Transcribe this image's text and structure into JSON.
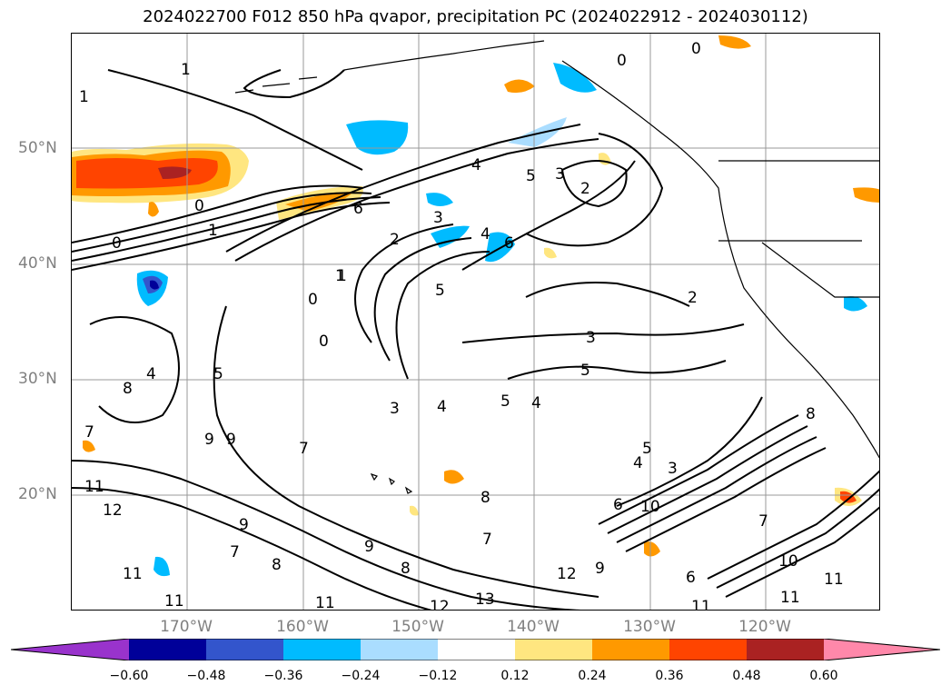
{
  "title": "2024022700 F012 850 hPa qvapor, precipitation PC (2024022912 - 2024030112)",
  "lat_labels": [
    "50°N",
    "40°N",
    "30°N",
    "20°N"
  ],
  "lon_labels": [
    "170°W",
    "160°W",
    "150°W",
    "140°W",
    "130°W",
    "120°W"
  ],
  "colorbar": {
    "ticks": [
      "−0.60",
      "−0.48",
      "−0.36",
      "−0.24",
      "−0.12",
      "0.12",
      "0.24",
      "0.36",
      "0.48",
      "0.60"
    ],
    "colors": [
      "#9933cc",
      "#000099",
      "#3355cc",
      "#00bbff",
      "#aaddff",
      "#ffffff",
      "#ffe680",
      "#ff9900",
      "#ff4400",
      "#aa2222",
      "#ff88aa"
    ]
  },
  "contour_labels": [
    "1",
    "1",
    "0",
    "0",
    "0",
    "1",
    "0",
    "1",
    "4",
    "5",
    "3",
    "2",
    "6",
    "3",
    "2",
    "4",
    "6",
    "1",
    "0",
    "0",
    "5",
    "3",
    "5",
    "5",
    "4",
    "2",
    "3",
    "4",
    "5",
    "8",
    "4",
    "7",
    "7",
    "5",
    "4",
    "3",
    "6",
    "10",
    "8",
    "9",
    "9",
    "8",
    "7",
    "11",
    "12",
    "11",
    "9",
    "9",
    "8",
    "8",
    "6",
    "11",
    "12",
    "11",
    "13",
    "12",
    "9",
    "11",
    "10",
    "11",
    "11",
    "7",
    "7"
  ]
}
